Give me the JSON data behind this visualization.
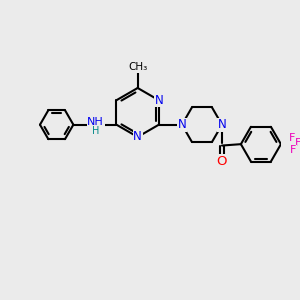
{
  "bg_color": "#ebebeb",
  "N_color": "#0000ee",
  "O_color": "#ff0000",
  "F_color": "#ee00bb",
  "C_color": "#000000",
  "lw": 1.5,
  "fs": 8.5,
  "figsize": [
    3.0,
    3.0
  ],
  "dpi": 100,
  "xlim": [
    0,
    10
  ],
  "ylim": [
    0,
    10
  ]
}
